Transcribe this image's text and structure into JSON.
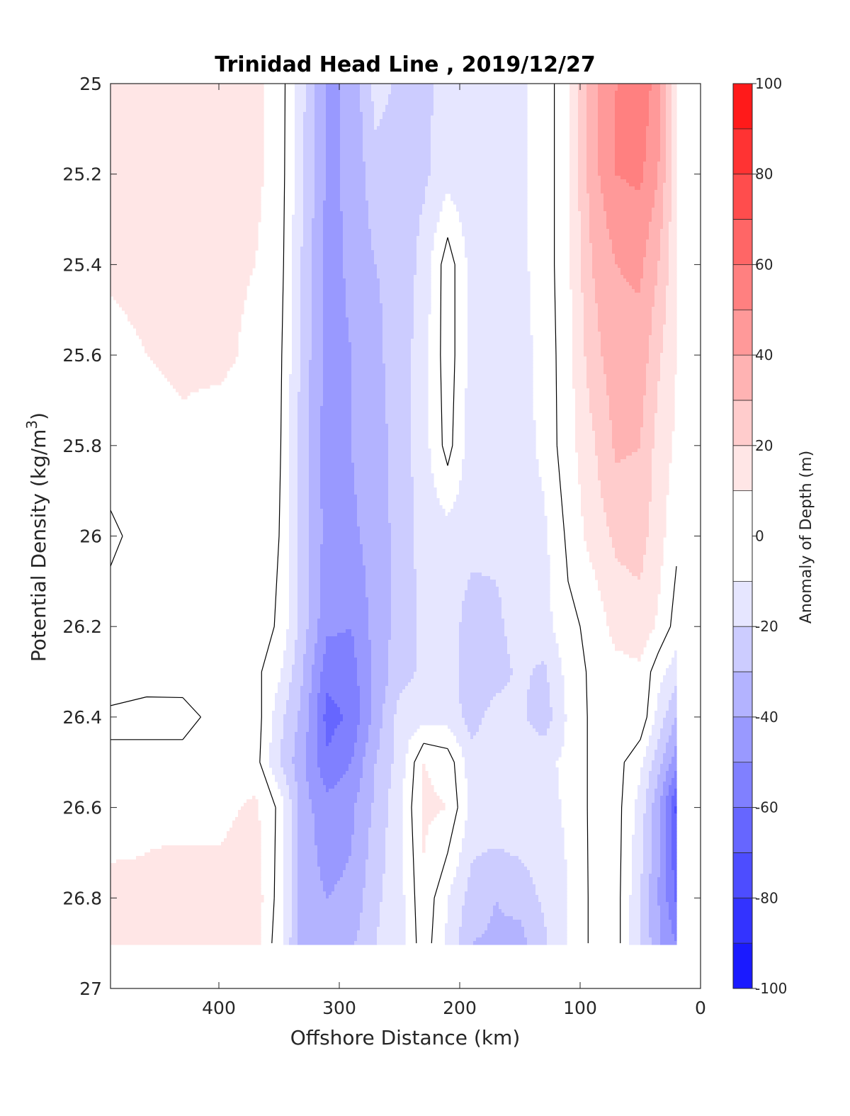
{
  "chart_data": {
    "type": "heatmap",
    "subtype": "filled-contour",
    "title": "Trinidad Head Line , 2019/12/27",
    "xlabel": "Offshore Distance (km)",
    "ylabel": "Potential Density (kg/m",
    "ylabel_sup": "3",
    "ylabel_end": ")",
    "colorbar_label": "Anomaly of Depth (m)",
    "xlim": [
      490,
      0
    ],
    "ylim": [
      25,
      27
    ],
    "x_reversed": true,
    "y_reversed": true,
    "xticks": [
      400,
      300,
      200,
      100,
      0
    ],
    "xtick_labels": [
      "400",
      "300",
      "200",
      "100",
      "0"
    ],
    "yticks": [
      25,
      25.2,
      25.4,
      25.6,
      25.8,
      26,
      26.2,
      26.4,
      26.6,
      26.8,
      27
    ],
    "ytick_labels": [
      "25",
      "25.2",
      "25.4",
      "25.6",
      "25.8",
      "26",
      "26.2",
      "26.4",
      "26.6",
      "26.8",
      "27"
    ],
    "colorbar_ticks": [
      100,
      80,
      60,
      40,
      20,
      0,
      -20,
      -40,
      -60,
      -80,
      -100
    ],
    "colorbar_tick_labels": [
      "100",
      "80",
      "60",
      "40",
      "20",
      "0",
      "-20",
      "-40",
      "-60",
      "-80",
      "-100"
    ],
    "colorbar_levels": [
      -100,
      -90,
      -80,
      -70,
      -60,
      -50,
      -40,
      -30,
      -20,
      -10,
      10,
      20,
      30,
      40,
      50,
      60,
      70,
      80,
      90,
      100
    ],
    "colorbar_colors": [
      "#0000ff",
      "#1a1aff",
      "#3333ff",
      "#4d4dff",
      "#6666ff",
      "#8080ff",
      "#9999ff",
      "#b3b3ff",
      "#ccccff",
      "#e6e6ff",
      "#ffffff",
      "#ffe6e6",
      "#ffcccc",
      "#ffb3b3",
      "#ff9999",
      "#ff8080",
      "#ff6666",
      "#ff4d4d",
      "#ff3333",
      "#ff1a1a",
      "#ff0000"
    ],
    "zero_contour_color": "#000000",
    "grid": false,
    "data_extent": {
      "x": [
        20,
        490
      ],
      "y": [
        25,
        26.9
      ]
    },
    "anomaly_field": {
      "x": [
        490,
        460,
        430,
        400,
        370,
        350,
        330,
        310,
        290,
        270,
        250,
        230,
        210,
        190,
        170,
        150,
        130,
        110,
        90,
        70,
        50,
        35,
        20
      ],
      "y": [
        25.0,
        25.2,
        25.4,
        25.6,
        25.8,
        26.0,
        26.2,
        26.3,
        26.4,
        26.5,
        26.6,
        26.8,
        26.9
      ],
      "z": [
        [
          14,
          13,
          13,
          12,
          12,
          6,
          -18,
          -42,
          -38,
          -16,
          -22,
          -24,
          -14,
          -15,
          -15,
          -12,
          -6,
          8,
          36,
          50,
          58,
          44,
          12
        ],
        [
          14,
          14,
          13,
          12,
          12,
          6,
          -20,
          -42,
          -38,
          -24,
          -24,
          -22,
          -14,
          -18,
          -15,
          -12,
          -6,
          8,
          36,
          50,
          52,
          40,
          12
        ],
        [
          11,
          12,
          13,
          12,
          10,
          5,
          -22,
          -44,
          -38,
          -30,
          -28,
          -16,
          6,
          -14,
          -16,
          -12,
          -6,
          8,
          30,
          40,
          42,
          30,
          12
        ],
        [
          8,
          10,
          11,
          12,
          8,
          3,
          -24,
          -44,
          -40,
          -32,
          -26,
          -14,
          6,
          -14,
          -15,
          -14,
          -6,
          6,
          26,
          36,
          36,
          22,
          10
        ],
        [
          5,
          8,
          9,
          6,
          5,
          2,
          -26,
          -45,
          -40,
          -34,
          -26,
          -14,
          4,
          -16,
          -14,
          -15,
          -7,
          6,
          18,
          32,
          30,
          16,
          8
        ],
        [
          -2,
          4,
          6,
          3,
          2,
          0,
          -26,
          -44,
          -42,
          -36,
          -26,
          -16,
          -14,
          -16,
          -18,
          -18,
          -12,
          2,
          14,
          22,
          24,
          14,
          2
        ],
        [
          4,
          6,
          4,
          6,
          4,
          -1,
          -26,
          -48,
          -50,
          -36,
          -26,
          -18,
          -14,
          -26,
          -22,
          -16,
          -14,
          -2,
          2,
          14,
          16,
          8,
          -4
        ],
        [
          6,
          5,
          4,
          4,
          3,
          -8,
          -30,
          -56,
          -54,
          -38,
          -24,
          -18,
          -14,
          -28,
          -24,
          -18,
          -22,
          -6,
          2,
          6,
          8,
          -6,
          -16
        ],
        [
          -2,
          -4,
          -3,
          3,
          6,
          -16,
          -34,
          -64,
          -58,
          -36,
          -16,
          -14,
          -14,
          -24,
          -16,
          -18,
          -26,
          -8,
          2,
          4,
          8,
          -14,
          -30
        ],
        [
          2,
          4,
          3,
          4,
          5,
          -20,
          -38,
          -58,
          -50,
          -30,
          -16,
          10,
          6,
          -16,
          -12,
          -14,
          -12,
          -8,
          2,
          4,
          -8,
          -26,
          -46
        ],
        [
          4,
          8,
          6,
          7,
          12,
          -2,
          -36,
          -46,
          -42,
          -28,
          -12,
          12,
          10,
          -14,
          -12,
          -12,
          -14,
          -8,
          2,
          4,
          -14,
          -38,
          -72
        ],
        [
          14,
          12,
          16,
          14,
          16,
          -4,
          -36,
          -40,
          -38,
          -22,
          -14,
          8,
          -10,
          -24,
          -30,
          -26,
          -18,
          -10,
          2,
          4,
          -20,
          -40,
          -62
        ],
        [
          14,
          14,
          16,
          14,
          14,
          -6,
          -36,
          -36,
          -32,
          -20,
          -14,
          6,
          -12,
          -30,
          -32,
          -34,
          -22,
          -10,
          2,
          4,
          -20,
          -38,
          -50
        ]
      ]
    }
  }
}
